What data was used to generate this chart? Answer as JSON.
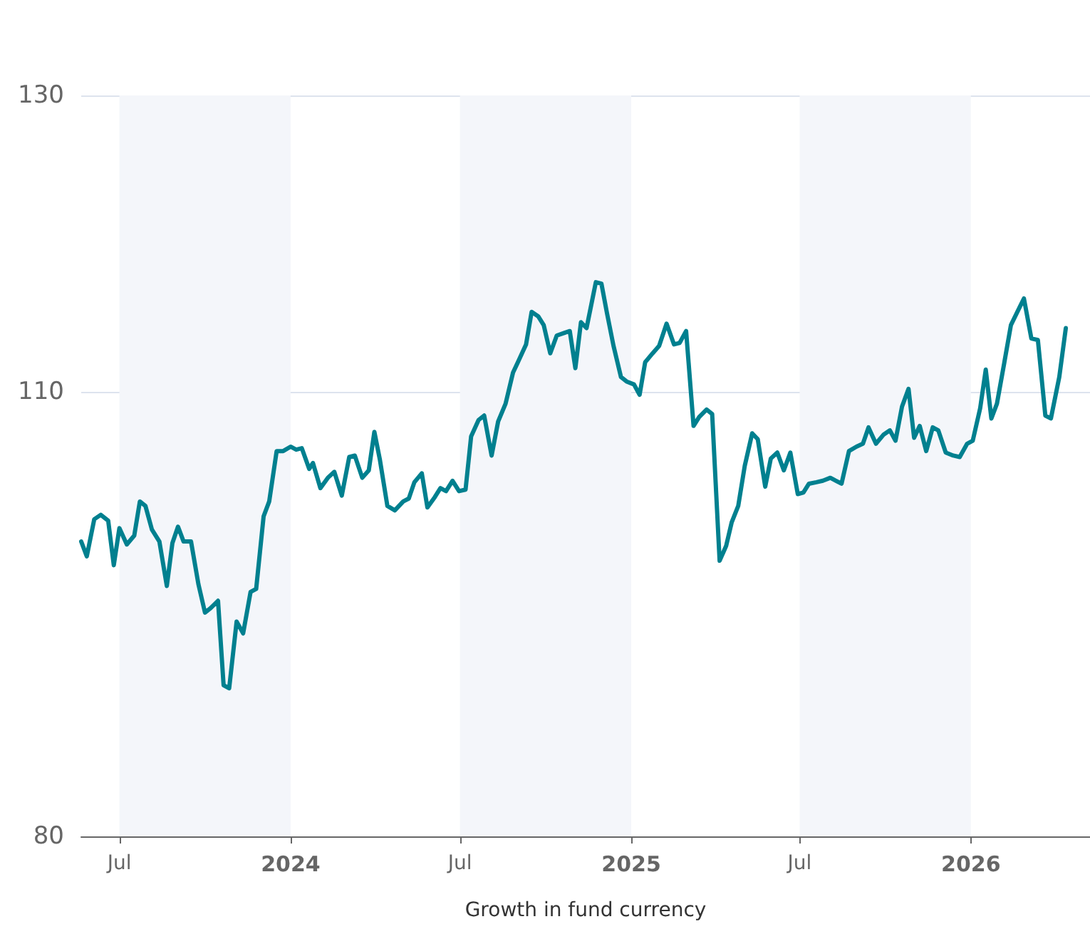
{
  "chart_data": {
    "type": "line",
    "xlabel": "Growth in fund currency",
    "xlim": [
      "2023-05-21",
      "2026-05-09"
    ],
    "xticks": [
      {
        "value": "2023-07-01",
        "label": "Jul"
      },
      {
        "value": "2024-01-01",
        "label": "2024"
      },
      {
        "value": "2024-07-01",
        "label": "Jul"
      },
      {
        "value": "2025-01-01",
        "label": "2025"
      },
      {
        "value": "2025-07-01",
        "label": "Jul"
      },
      {
        "value": "2026-01-01",
        "label": "2026"
      }
    ],
    "ylim": [
      80,
      130
    ],
    "yticks": [
      80,
      110,
      130
    ],
    "grid": "y",
    "marker": "none",
    "line_style": "solid",
    "bands": [
      {
        "axis": "x",
        "from": "2023-07-01",
        "to": "2024-01-01",
        "color": "#f4f6fa"
      },
      {
        "axis": "x",
        "from": "2024-07-01",
        "to": "2025-01-01",
        "color": "#f4f6fa"
      },
      {
        "axis": "x",
        "from": "2025-07-01",
        "to": "2026-01-01",
        "color": "#f4f6fa"
      }
    ],
    "x": [
      "2023-05-21",
      "2023-05-27",
      "2023-06-04",
      "2023-06-11",
      "2023-06-19",
      "2023-06-25",
      "2023-07-01",
      "2023-07-09",
      "2023-07-17",
      "2023-07-23",
      "2023-07-29",
      "2023-08-05",
      "2023-08-13",
      "2023-08-21",
      "2023-08-27",
      "2023-09-02",
      "2023-09-08",
      "2023-09-16",
      "2023-09-24",
      "2023-10-01",
      "2023-10-07",
      "2023-10-15",
      "2023-10-21",
      "2023-10-27",
      "2023-11-04",
      "2023-11-11",
      "2023-11-19",
      "2023-11-25",
      "2023-12-03",
      "2023-12-09",
      "2023-12-17",
      "2023-12-24",
      "2024-01-01",
      "2024-01-07",
      "2024-01-13",
      "2024-01-21",
      "2024-01-25",
      "2024-02-02",
      "2024-02-10",
      "2024-02-17",
      "2024-02-25",
      "2024-03-04",
      "2024-03-10",
      "2024-03-18",
      "2024-03-25",
      "2024-03-31",
      "2024-04-06",
      "2024-04-14",
      "2024-04-22",
      "2024-05-01",
      "2024-05-07",
      "2024-05-13",
      "2024-05-21",
      "2024-05-27",
      "2024-06-04",
      "2024-06-10",
      "2024-06-16",
      "2024-06-23",
      "2024-06-30",
      "2024-07-07",
      "2024-07-13",
      "2024-07-21",
      "2024-07-27",
      "2024-08-04",
      "2024-08-11",
      "2024-08-19",
      "2024-08-27",
      "2024-09-02",
      "2024-09-10",
      "2024-09-16",
      "2024-09-23",
      "2024-09-29",
      "2024-10-06",
      "2024-10-13",
      "2024-10-22",
      "2024-10-27",
      "2024-11-02",
      "2024-11-08",
      "2024-11-14",
      "2024-11-24",
      "2024-11-30",
      "2024-12-06",
      "2024-12-13",
      "2024-12-21",
      "2024-12-27",
      "2025-01-04",
      "2025-01-10",
      "2025-01-16",
      "2025-01-24",
      "2025-01-31",
      "2025-02-08",
      "2025-02-16",
      "2025-02-22",
      "2025-03-01",
      "2025-03-09",
      "2025-03-15",
      "2025-03-23",
      "2025-03-29",
      "2025-04-06",
      "2025-04-13",
      "2025-04-19",
      "2025-04-26",
      "2025-05-03",
      "2025-05-11",
      "2025-05-17",
      "2025-05-25",
      "2025-05-31",
      "2025-06-07",
      "2025-06-14",
      "2025-06-21",
      "2025-06-29",
      "2025-07-05",
      "2025-07-11",
      "2025-07-19",
      "2025-07-26",
      "2025-08-03",
      "2025-08-09",
      "2025-08-15",
      "2025-08-23",
      "2025-08-31",
      "2025-09-07",
      "2025-09-13",
      "2025-09-21",
      "2025-09-29",
      "2025-10-06",
      "2025-10-12",
      "2025-10-19",
      "2025-10-26",
      "2025-11-01",
      "2025-11-07",
      "2025-11-14",
      "2025-11-21",
      "2025-11-27",
      "2025-12-05",
      "2025-12-13",
      "2025-12-20",
      "2025-12-28",
      "2026-01-03",
      "2026-01-11",
      "2026-01-17",
      "2026-01-23",
      "2026-01-29",
      "2026-02-06",
      "2026-02-13",
      "2026-02-20",
      "2026-02-27",
      "2026-03-07",
      "2026-03-14",
      "2026-03-22",
      "2026-03-28",
      "2026-04-06",
      "2026-04-13"
    ],
    "series": [
      {
        "color": "#00808f",
        "values": [
          99.9,
          98.9,
          101.4,
          101.7,
          101.3,
          98.3,
          100.8,
          99.7,
          100.3,
          102.6,
          102.3,
          100.7,
          99.9,
          96.9,
          99.8,
          100.9,
          99.9,
          99.9,
          97.0,
          95.1,
          95.4,
          95.9,
          90.2,
          90.0,
          94.5,
          93.7,
          96.5,
          96.7,
          101.6,
          102.6,
          106.0,
          106.0,
          106.3,
          106.1,
          106.2,
          104.8,
          105.2,
          103.5,
          104.2,
          104.6,
          103.0,
          105.6,
          105.7,
          104.2,
          104.7,
          107.3,
          105.4,
          102.3,
          102.0,
          102.6,
          102.8,
          103.9,
          104.5,
          102.2,
          102.9,
          103.5,
          103.3,
          104.0,
          103.3,
          103.4,
          107.0,
          108.1,
          108.4,
          105.7,
          108.0,
          109.2,
          111.3,
          112.1,
          113.2,
          115.4,
          115.1,
          114.5,
          112.6,
          113.8,
          114.0,
          114.1,
          111.6,
          114.7,
          114.3,
          117.4,
          117.3,
          115.3,
          113.1,
          111.0,
          110.7,
          110.5,
          109.8,
          112.0,
          112.6,
          113.1,
          114.6,
          113.2,
          113.3,
          114.1,
          107.7,
          108.3,
          108.8,
          108.5,
          98.6,
          99.6,
          101.2,
          102.3,
          105.0,
          107.2,
          106.8,
          103.6,
          105.5,
          105.9,
          104.7,
          105.9,
          103.1,
          103.2,
          103.8,
          103.9,
          104.0,
          104.2,
          104.0,
          103.8,
          106.0,
          106.3,
          106.5,
          107.6,
          106.5,
          107.1,
          107.4,
          106.7,
          109.0,
          110.2,
          106.9,
          107.7,
          106.0,
          107.6,
          107.4,
          105.9,
          105.7,
          105.6,
          106.5,
          106.7,
          108.9,
          111.5,
          108.2,
          109.2,
          112.0,
          114.5,
          115.4,
          116.3,
          113.6,
          113.5,
          108.4,
          108.2,
          111.0,
          114.3
        ]
      }
    ]
  }
}
